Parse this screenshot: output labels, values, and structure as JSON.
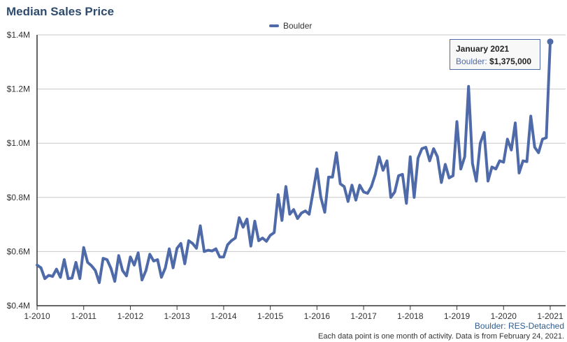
{
  "title": "Median Sales Price",
  "legend": {
    "label": "Boulder"
  },
  "tooltip": {
    "date": "January 2021",
    "series": "Boulder:",
    "value": "$1,375,000"
  },
  "source_label": "Boulder: RES-Detached",
  "footnote": "Each data point is one month of activity. Data is from February 24, 2021.",
  "colors": {
    "line": "#4f6aa8",
    "grid": "#c8c8c8",
    "axis": "#333333",
    "title": "#2f4b6e"
  },
  "chart_data": {
    "type": "line",
    "title": "Median Sales Price",
    "xlabel": "",
    "ylabel": "",
    "x_start": "2010-01",
    "x_end": "2021-01",
    "ylim": [
      400000,
      1400000
    ],
    "y_ticks": [
      {
        "value": 400000,
        "label": "$0.4M"
      },
      {
        "value": 600000,
        "label": "$0.6M"
      },
      {
        "value": 800000,
        "label": "$0.8M"
      },
      {
        "value": 1000000,
        "label": "$1.0M"
      },
      {
        "value": 1200000,
        "label": "$1.2M"
      },
      {
        "value": 1400000,
        "label": "$1.4M"
      }
    ],
    "x_ticks": [
      "1-2010",
      "1-2011",
      "1-2012",
      "1-2013",
      "1-2014",
      "1-2015",
      "1-2016",
      "1-2017",
      "1-2018",
      "1-2019",
      "1-2020",
      "1-2021"
    ],
    "grid": true,
    "legend_position": "top-center",
    "series": [
      {
        "name": "Boulder",
        "values": [
          550000,
          540000,
          500000,
          512000,
          508000,
          535000,
          505000,
          570000,
          500000,
          502000,
          560000,
          500000,
          615000,
          560000,
          548000,
          530000,
          485000,
          575000,
          570000,
          538000,
          490000,
          585000,
          530000,
          510000,
          580000,
          550000,
          595000,
          495000,
          530000,
          590000,
          565000,
          570000,
          505000,
          540000,
          610000,
          540000,
          612000,
          630000,
          555000,
          640000,
          630000,
          612000,
          695000,
          600000,
          605000,
          602000,
          610000,
          580000,
          580000,
          625000,
          640000,
          650000,
          725000,
          690000,
          720000,
          620000,
          712000,
          640000,
          650000,
          638000,
          660000,
          670000,
          810000,
          715000,
          840000,
          738000,
          755000,
          722000,
          742000,
          750000,
          738000,
          820000,
          905000,
          800000,
          745000,
          875000,
          875000,
          965000,
          850000,
          840000,
          785000,
          845000,
          790000,
          845000,
          820000,
          815000,
          840000,
          885000,
          950000,
          900000,
          935000,
          800000,
          820000,
          880000,
          885000,
          778000,
          950000,
          800000,
          945000,
          980000,
          985000,
          935000,
          980000,
          950000,
          855000,
          922000,
          872000,
          880000,
          1080000,
          905000,
          950000,
          1210000,
          925000,
          860000,
          1000000,
          1040000,
          860000,
          912000,
          905000,
          935000,
          930000,
          1015000,
          975000,
          1075000,
          890000,
          935000,
          932000,
          1100000,
          985000,
          965000,
          1015000,
          1020000,
          1375000
        ]
      }
    ]
  }
}
